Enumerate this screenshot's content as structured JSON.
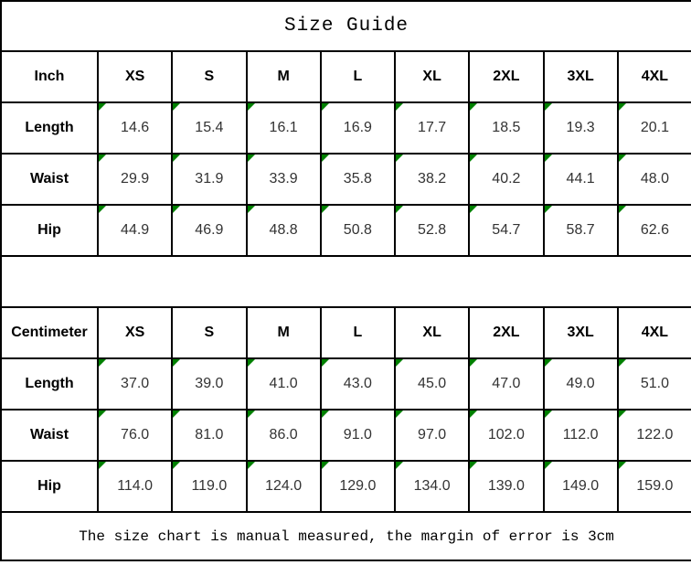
{
  "title": "Size Guide",
  "footnote": "The size chart is manual measured, the margin of error is 3cm",
  "colors": {
    "border": "#000000",
    "cell_flag": "#008000",
    "value_text": "#333333"
  },
  "chart_data": [
    {
      "type": "table",
      "title": "Size Guide",
      "unit": "Inch",
      "columns": [
        "Inch",
        "XS",
        "S",
        "M",
        "L",
        "XL",
        "2XL",
        "3XL",
        "4XL"
      ],
      "rows": [
        [
          "Length",
          "14.6",
          "15.4",
          "16.1",
          "16.9",
          "17.7",
          "18.5",
          "19.3",
          "20.1"
        ],
        [
          "Waist",
          "29.9",
          "31.9",
          "33.9",
          "35.8",
          "38.2",
          "40.2",
          "44.1",
          "48.0"
        ],
        [
          "Hip",
          "44.9",
          "46.9",
          "48.8",
          "50.8",
          "52.8",
          "54.7",
          "58.7",
          "62.6"
        ]
      ]
    },
    {
      "type": "table",
      "title": "Size Guide",
      "unit": "Centimeter",
      "columns": [
        "Centimeter",
        "XS",
        "S",
        "M",
        "L",
        "XL",
        "2XL",
        "3XL",
        "4XL"
      ],
      "rows": [
        [
          "Length",
          "37.0",
          "39.0",
          "41.0",
          "43.0",
          "45.0",
          "47.0",
          "49.0",
          "51.0"
        ],
        [
          "Waist",
          "76.0",
          "81.0",
          "86.0",
          "91.0",
          "97.0",
          "102.0",
          "112.0",
          "122.0"
        ],
        [
          "Hip",
          "114.0",
          "119.0",
          "124.0",
          "129.0",
          "134.0",
          "139.0",
          "149.0",
          "159.0"
        ]
      ]
    }
  ]
}
